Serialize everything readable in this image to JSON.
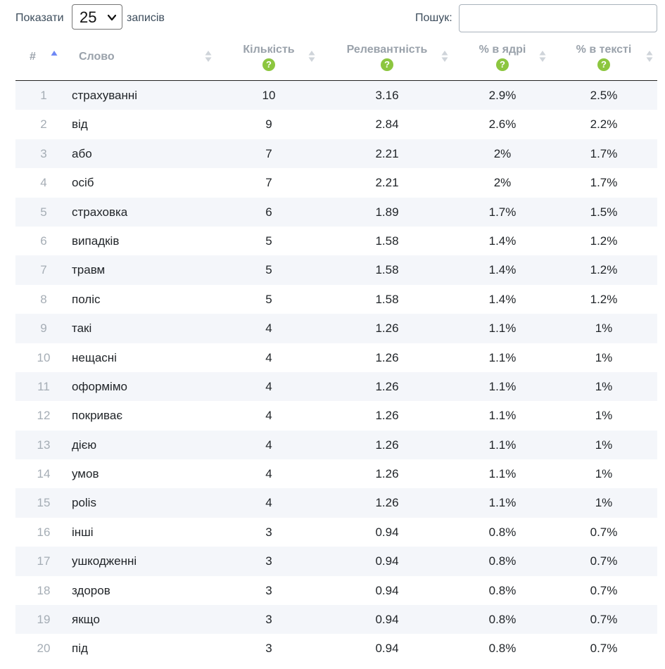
{
  "controls": {
    "show_label": "Показати",
    "page_size": "25",
    "records_label": "записів",
    "search_label": "Пошук:",
    "search_value": ""
  },
  "columns": {
    "num": "#",
    "word": "Слово",
    "count": "Кількість",
    "relevance": "Релевантність",
    "pct_core": "% в ядрі",
    "pct_text": "% в тексті",
    "help_glyph": "?"
  },
  "sort": {
    "column": "num",
    "direction": "ascending"
  },
  "colors": {
    "help_icon": "#8cc63f",
    "sort_active": "#6f88f5",
    "sort_inactive": "#cfd4da",
    "row_stripe": "#f4f6fa"
  },
  "rows": [
    {
      "num": "1",
      "word": "страхуванні",
      "count": "10",
      "relevance": "3.16",
      "pct_core": "2.9%",
      "pct_text": "2.5%"
    },
    {
      "num": "2",
      "word": "від",
      "count": "9",
      "relevance": "2.84",
      "pct_core": "2.6%",
      "pct_text": "2.2%"
    },
    {
      "num": "3",
      "word": "або",
      "count": "7",
      "relevance": "2.21",
      "pct_core": "2%",
      "pct_text": "1.7%"
    },
    {
      "num": "4",
      "word": "осіб",
      "count": "7",
      "relevance": "2.21",
      "pct_core": "2%",
      "pct_text": "1.7%"
    },
    {
      "num": "5",
      "word": "страховка",
      "count": "6",
      "relevance": "1.89",
      "pct_core": "1.7%",
      "pct_text": "1.5%"
    },
    {
      "num": "6",
      "word": "випадків",
      "count": "5",
      "relevance": "1.58",
      "pct_core": "1.4%",
      "pct_text": "1.2%"
    },
    {
      "num": "7",
      "word": "травм",
      "count": "5",
      "relevance": "1.58",
      "pct_core": "1.4%",
      "pct_text": "1.2%"
    },
    {
      "num": "8",
      "word": "поліс",
      "count": "5",
      "relevance": "1.58",
      "pct_core": "1.4%",
      "pct_text": "1.2%"
    },
    {
      "num": "9",
      "word": "такі",
      "count": "4",
      "relevance": "1.26",
      "pct_core": "1.1%",
      "pct_text": "1%"
    },
    {
      "num": "10",
      "word": "нещасні",
      "count": "4",
      "relevance": "1.26",
      "pct_core": "1.1%",
      "pct_text": "1%"
    },
    {
      "num": "11",
      "word": "оформімо",
      "count": "4",
      "relevance": "1.26",
      "pct_core": "1.1%",
      "pct_text": "1%"
    },
    {
      "num": "12",
      "word": "покриває",
      "count": "4",
      "relevance": "1.26",
      "pct_core": "1.1%",
      "pct_text": "1%"
    },
    {
      "num": "13",
      "word": "дією",
      "count": "4",
      "relevance": "1.26",
      "pct_core": "1.1%",
      "pct_text": "1%"
    },
    {
      "num": "14",
      "word": "умов",
      "count": "4",
      "relevance": "1.26",
      "pct_core": "1.1%",
      "pct_text": "1%"
    },
    {
      "num": "15",
      "word": "polis",
      "count": "4",
      "relevance": "1.26",
      "pct_core": "1.1%",
      "pct_text": "1%"
    },
    {
      "num": "16",
      "word": "інші",
      "count": "3",
      "relevance": "0.94",
      "pct_core": "0.8%",
      "pct_text": "0.7%"
    },
    {
      "num": "17",
      "word": "ушкодженні",
      "count": "3",
      "relevance": "0.94",
      "pct_core": "0.8%",
      "pct_text": "0.7%"
    },
    {
      "num": "18",
      "word": "здоров",
      "count": "3",
      "relevance": "0.94",
      "pct_core": "0.8%",
      "pct_text": "0.7%"
    },
    {
      "num": "19",
      "word": "якщо",
      "count": "3",
      "relevance": "0.94",
      "pct_core": "0.8%",
      "pct_text": "0.7%"
    },
    {
      "num": "20",
      "word": "під",
      "count": "3",
      "relevance": "0.94",
      "pct_core": "0.8%",
      "pct_text": "0.7%"
    }
  ]
}
